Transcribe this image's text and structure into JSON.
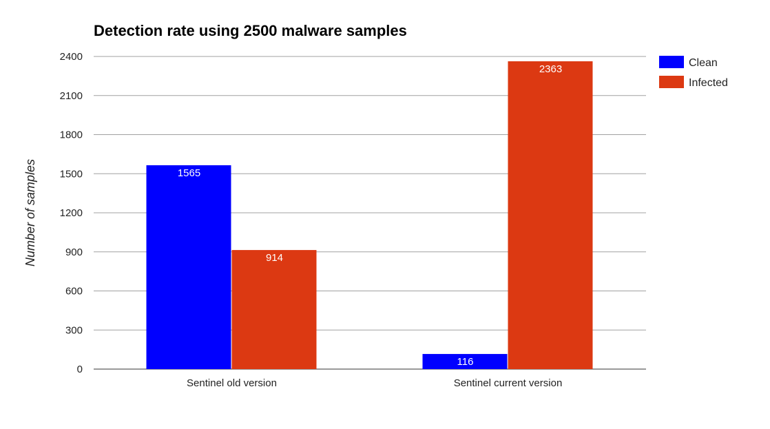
{
  "chart_data": {
    "type": "bar",
    "title": "Detection rate using 2500 malware samples",
    "xlabel": "",
    "ylabel": "Number of samples",
    "categories": [
      "Sentinel old version",
      "Sentinel current version"
    ],
    "series": [
      {
        "name": "Clean",
        "color": "#0000ff",
        "values": [
          1565,
          116
        ]
      },
      {
        "name": "Infected",
        "color": "#dc3912",
        "values": [
          914,
          2363
        ]
      }
    ],
    "ylim": [
      0,
      2400
    ],
    "yticks": [
      0,
      300,
      600,
      900,
      1200,
      1500,
      1800,
      2100,
      2400
    ],
    "grid": true,
    "legend_position": "right"
  }
}
